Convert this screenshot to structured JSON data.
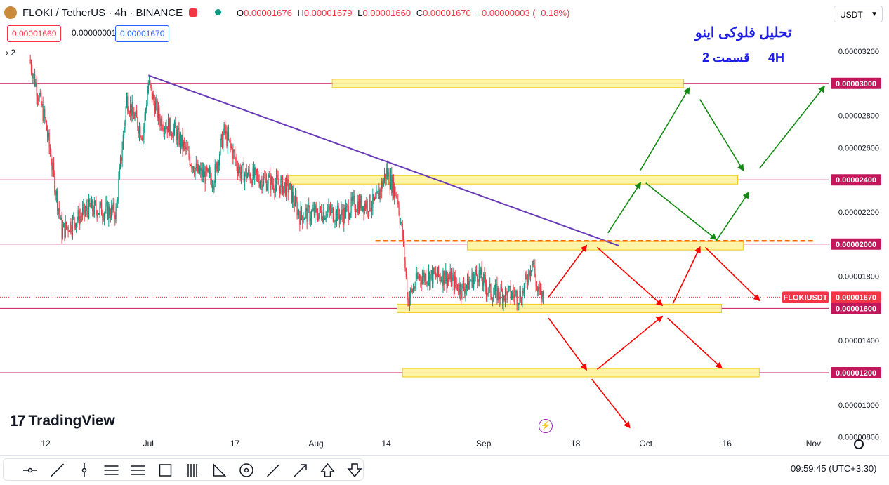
{
  "header": {
    "symbol": "FLOKI / TetherUS · 4h · BINANCE",
    "ohlc": {
      "o_label": "O",
      "o": "0.00001676",
      "h_label": "H",
      "h": "0.00001679",
      "l_label": "L",
      "l": "0.00001660",
      "c_label": "C",
      "c": "0.00001670",
      "change": "−0.00000003 (−0.18%)"
    },
    "sell_price": "0.00001669",
    "spread": "0.00000001",
    "buy_price": "0.00001670",
    "indicator_count": "2",
    "currency": "USDT"
  },
  "annotations": {
    "title_line1": "تحلیل فلوکی اینو",
    "title_line2": "قسمت 2",
    "timeframe": "4H"
  },
  "brand": "TradingView",
  "footer": {
    "clock": "09:59:45 (UTC+3:30)"
  },
  "colors": {
    "up": "#089981",
    "down": "#f23645",
    "level_line": "#c2185b",
    "zone_fill": "#fff59d",
    "trendline": "#673ab7",
    "dashed": "#ff6d00",
    "arrow_up": "#138a13",
    "arrow_down": "#ff0000",
    "annotation": "#1e1ee6"
  },
  "toolbar_icons": [
    "horizontal-line-icon",
    "trend-line-icon",
    "vertical-line-icon",
    "parallel-channel-icon",
    "fib-retracement-icon",
    "rectangle-icon",
    "long-position-icon",
    "triangle-pattern-icon",
    "circle-icon",
    "brush-icon",
    "arrow-icon",
    "arrow-up-icon",
    "arrow-down-icon"
  ],
  "chart_data": {
    "type": "candlestick",
    "symbol": "FLOKIUSDT",
    "y_ticks": [
      "0.00003200",
      "0.00003000",
      "0.00002800",
      "0.00002600",
      "0.00002400",
      "0.00002200",
      "0.00002000",
      "0.00001800",
      "0.00001600",
      "0.00001400",
      "0.00001200",
      "0.00001000",
      "0.00000800"
    ],
    "x_ticks": [
      {
        "label": "12",
        "date": "2023-06-12"
      },
      {
        "label": "Jul",
        "date": "2023-07-01"
      },
      {
        "label": "17",
        "date": "2023-07-17"
      },
      {
        "label": "Aug",
        "date": "2023-08-01"
      },
      {
        "label": "14",
        "date": "2023-08-14"
      },
      {
        "label": "Sep",
        "date": "2023-09-01"
      },
      {
        "label": "18",
        "date": "2023-09-18"
      },
      {
        "label": "Oct",
        "date": "2023-10-01"
      },
      {
        "label": "16",
        "date": "2023-10-16"
      },
      {
        "label": "Nov",
        "date": "2023-11-01"
      }
    ],
    "ylim": [
      7.9e-06,
      3.3e-05
    ],
    "last_price": {
      "label": "FLOKIUSDT",
      "value": "0.00001670"
    },
    "levels": [
      {
        "value": 3e-05,
        "label": "0.00003000"
      },
      {
        "value": 2.4e-05,
        "label": "0.00002400"
      },
      {
        "value": 2e-05,
        "label": "0.00002000"
      },
      {
        "value": 1.6e-05,
        "label": "0.00001600"
      },
      {
        "value": 1.2e-05,
        "label": "0.00001200"
      }
    ],
    "zones": [
      {
        "from": "2023-08-04",
        "to": "2023-10-08",
        "center": 3e-05
      },
      {
        "from": "2023-07-27",
        "to": "2023-10-18",
        "center": 2.4e-05
      },
      {
        "from": "2023-08-29",
        "to": "2023-10-19",
        "center": 1.99e-05
      },
      {
        "from": "2023-08-16",
        "to": "2023-10-15",
        "center": 1.6e-05
      },
      {
        "from": "2023-08-17",
        "to": "2023-10-22",
        "center": 1.2e-05
      }
    ],
    "trendline": {
      "from": {
        "date": "2023-07-01",
        "value": 3.05e-05
      },
      "to": {
        "date": "2023-09-26",
        "value": 1.99e-05
      }
    },
    "dashed_level": {
      "from": "2023-08-12",
      "to": "2023-11-01",
      "value": 2.02e-05
    },
    "path": [
      {
        "date": "2023-06-09",
        "value": 3.15e-05
      },
      {
        "date": "2023-06-12",
        "value": 2.75e-05
      },
      {
        "date": "2023-06-15",
        "value": 2.08e-05
      },
      {
        "date": "2023-06-20",
        "value": 2.22e-05
      },
      {
        "date": "2023-06-25",
        "value": 2.2e-05
      },
      {
        "date": "2023-06-27",
        "value": 2.9e-05
      },
      {
        "date": "2023-06-30",
        "value": 2.68e-05
      },
      {
        "date": "2023-07-01",
        "value": 3e-05
      },
      {
        "date": "2023-07-03",
        "value": 2.78e-05
      },
      {
        "date": "2023-07-06",
        "value": 2.7e-05
      },
      {
        "date": "2023-07-10",
        "value": 2.45e-05
      },
      {
        "date": "2023-07-13",
        "value": 2.4e-05
      },
      {
        "date": "2023-07-15",
        "value": 2.7e-05
      },
      {
        "date": "2023-07-18",
        "value": 2.45e-05
      },
      {
        "date": "2023-07-22",
        "value": 2.4e-05
      },
      {
        "date": "2023-07-27",
        "value": 2.35e-05
      },
      {
        "date": "2023-07-29",
        "value": 2.18e-05
      },
      {
        "date": "2023-08-03",
        "value": 2.2e-05
      },
      {
        "date": "2023-08-06",
        "value": 2.18e-05
      },
      {
        "date": "2023-08-08",
        "value": 2.25e-05
      },
      {
        "date": "2023-08-12",
        "value": 2.25e-05
      },
      {
        "date": "2023-08-14",
        "value": 2.45e-05
      },
      {
        "date": "2023-08-16",
        "value": 2.3e-05
      },
      {
        "date": "2023-08-17",
        "value": 2.05e-05
      },
      {
        "date": "2023-08-18",
        "value": 1.65e-05
      },
      {
        "date": "2023-08-20",
        "value": 1.8e-05
      },
      {
        "date": "2023-08-25",
        "value": 1.8e-05
      },
      {
        "date": "2023-08-28",
        "value": 1.72e-05
      },
      {
        "date": "2023-08-31",
        "value": 1.82e-05
      },
      {
        "date": "2023-09-02",
        "value": 1.7e-05
      },
      {
        "date": "2023-09-08",
        "value": 1.68e-05
      },
      {
        "date": "2023-09-10",
        "value": 1.9e-05
      },
      {
        "date": "2023-09-11",
        "value": 1.7e-05
      },
      {
        "date": "2023-09-12",
        "value": 1.67e-05
      }
    ],
    "scenario_arrows": [
      {
        "color": "green",
        "from": {
          "date": "2023-09-24",
          "value": 2.07e-05
        },
        "to": {
          "date": "2023-09-30",
          "value": 2.38e-05
        }
      },
      {
        "color": "green",
        "from": {
          "date": "2023-09-30",
          "value": 2.46e-05
        },
        "to": {
          "date": "2023-10-09",
          "value": 2.97e-05
        }
      },
      {
        "color": "green",
        "from": {
          "date": "2023-10-11",
          "value": 2.9e-05
        },
        "to": {
          "date": "2023-10-19",
          "value": 2.46e-05
        }
      },
      {
        "color": "green",
        "from": {
          "date": "2023-10-22",
          "value": 2.47e-05
        },
        "to": {
          "date": "2023-11-03",
          "value": 2.98e-05
        }
      },
      {
        "color": "green",
        "from": {
          "date": "2023-10-01",
          "value": 2.38e-05
        },
        "to": {
          "date": "2023-10-14",
          "value": 2.03e-05
        }
      },
      {
        "color": "green",
        "from": {
          "date": "2023-10-14",
          "value": 2.02e-05
        },
        "to": {
          "date": "2023-10-20",
          "value": 2.32e-05
        }
      },
      {
        "color": "red",
        "from": {
          "date": "2023-09-13",
          "value": 1.67e-05
        },
        "to": {
          "date": "2023-09-20",
          "value": 1.99e-05
        }
      },
      {
        "color": "red",
        "from": {
          "date": "2023-09-22",
          "value": 1.98e-05
        },
        "to": {
          "date": "2023-10-04",
          "value": 1.62e-05
        }
      },
      {
        "color": "red",
        "from": {
          "date": "2023-10-06",
          "value": 1.63e-05
        },
        "to": {
          "date": "2023-10-11",
          "value": 1.98e-05
        }
      },
      {
        "color": "red",
        "from": {
          "date": "2023-10-12",
          "value": 1.98e-05
        },
        "to": {
          "date": "2023-10-22",
          "value": 1.65e-05
        }
      },
      {
        "color": "red",
        "from": {
          "date": "2023-09-13",
          "value": 1.54e-05
        },
        "to": {
          "date": "2023-09-20",
          "value": 1.22e-05
        }
      },
      {
        "color": "red",
        "from": {
          "date": "2023-09-22",
          "value": 1.22e-05
        },
        "to": {
          "date": "2023-10-04",
          "value": 1.55e-05
        }
      },
      {
        "color": "red",
        "from": {
          "date": "2023-10-05",
          "value": 1.54e-05
        },
        "to": {
          "date": "2023-10-15",
          "value": 1.23e-05
        }
      },
      {
        "color": "red",
        "from": {
          "date": "2023-09-21",
          "value": 1.16e-05
        },
        "to": {
          "date": "2023-09-28",
          "value": 8.6e-06
        }
      }
    ]
  }
}
